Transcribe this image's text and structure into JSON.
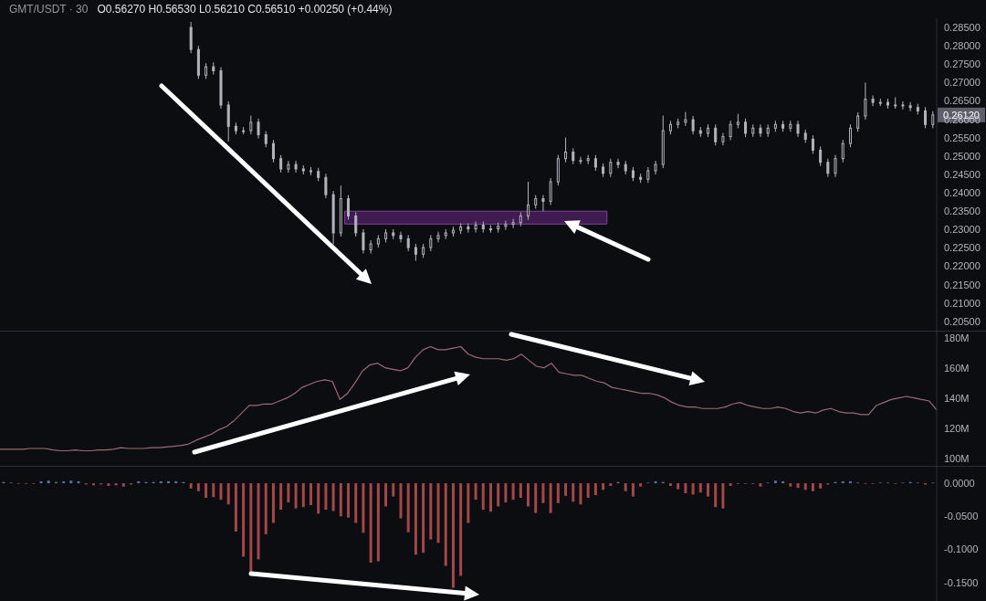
{
  "chart_data": [
    {
      "type": "candlestick",
      "title": "GMT/USDT · 30",
      "subtitle": "O0.56270 H0.56530 L0.56210 C0.56510 +0.00250 (+0.44%)",
      "color": "#b2b5be",
      "tick_labels": "y",
      "categories": [
        null,
        null,
        null,
        null,
        null,
        null,
        null,
        null,
        null,
        null,
        null,
        null,
        null,
        null,
        null,
        null,
        null,
        null,
        null,
        null,
        null,
        null,
        null,
        null,
        null,
        null,
        null,
        null,
        null,
        null,
        null,
        null,
        null,
        null,
        null,
        null,
        null,
        null,
        null,
        null,
        null,
        null,
        null,
        null,
        null,
        null,
        null,
        null,
        null,
        null,
        null,
        null,
        null,
        null,
        null,
        null,
        null,
        null,
        null,
        null,
        null,
        null,
        null,
        null,
        null,
        null,
        null,
        null,
        null,
        null,
        null,
        null,
        null,
        null,
        null,
        null,
        null,
        null,
        null,
        null,
        null,
        null,
        null,
        null,
        null,
        null,
        null,
        null,
        null,
        null,
        null,
        null,
        null,
        null,
        null,
        null,
        null,
        null,
        null,
        null,
        null,
        null,
        null,
        null,
        null,
        null,
        null,
        null,
        null,
        null,
        null,
        null,
        null,
        null,
        null,
        null,
        null,
        null,
        null,
        null,
        null,
        null,
        null,
        null,
        null
      ],
      "ohlc": [
        null,
        null,
        null,
        null,
        null,
        null,
        null,
        null,
        null,
        null,
        null,
        null,
        null,
        null,
        null,
        null,
        null,
        null,
        null,
        null,
        null,
        null,
        null,
        null,
        null,
        [
          0.285,
          0.2865,
          0.278,
          0.279
        ],
        [
          0.279,
          0.28,
          0.271,
          0.272
        ],
        [
          0.272,
          0.2753,
          0.271,
          0.2743
        ],
        [
          0.2743,
          0.2755,
          0.2722,
          0.2732
        ],
        [
          0.2732,
          0.2742,
          0.2629,
          0.2639
        ],
        [
          0.2639,
          0.2649,
          0.254,
          0.2581
        ],
        [
          0.2581,
          0.2591,
          0.2559,
          0.2569
        ],
        [
          0.2569,
          0.2579,
          0.2559,
          0.2569
        ],
        [
          0.2569,
          0.261,
          0.2559,
          0.2592
        ],
        [
          0.2592,
          0.2602,
          0.2548,
          0.2558
        ],
        [
          0.2558,
          0.2568,
          0.2524,
          0.2534
        ],
        [
          0.2534,
          0.2544,
          0.2483,
          0.2493
        ],
        [
          0.2493,
          0.2503,
          0.2455,
          0.2465
        ],
        [
          0.2465,
          0.2487,
          0.2455,
          0.2477
        ],
        [
          0.2477,
          0.2487,
          0.2455,
          0.2465
        ],
        [
          0.2465,
          0.2475,
          0.245,
          0.246
        ],
        [
          0.246,
          0.247,
          0.2448,
          0.2458
        ],
        [
          0.2458,
          0.2468,
          0.2432,
          0.2442
        ],
        [
          0.2442,
          0.2452,
          0.2385,
          0.2395
        ],
        [
          0.2395,
          0.2405,
          0.226,
          0.2291
        ],
        [
          0.2291,
          0.242,
          0.2281,
          0.2384
        ],
        [
          0.2384,
          0.2394,
          0.2327,
          0.2337
        ],
        [
          0.2337,
          0.2347,
          0.2281,
          0.2291
        ],
        [
          0.2291,
          0.2301,
          0.2235,
          0.2245
        ],
        [
          0.2245,
          0.2271,
          0.2235,
          0.2261
        ],
        [
          0.2261,
          0.2285,
          0.2251,
          0.2275
        ],
        [
          0.2275,
          0.2301,
          0.2265,
          0.2291
        ],
        [
          0.2291,
          0.2301,
          0.2274,
          0.2284
        ],
        [
          0.2284,
          0.2294,
          0.2265,
          0.2275
        ],
        [
          0.2275,
          0.2285,
          0.2241,
          0.2251
        ],
        [
          0.2251,
          0.2261,
          0.2215,
          0.2233
        ],
        [
          0.2233,
          0.2261,
          0.2223,
          0.2251
        ],
        [
          0.2251,
          0.2285,
          0.2241,
          0.2275
        ],
        [
          0.2275,
          0.2294,
          0.2265,
          0.2284
        ],
        [
          0.2284,
          0.2301,
          0.2274,
          0.2291
        ],
        [
          0.2291,
          0.2308,
          0.2281,
          0.2298
        ],
        [
          0.2298,
          0.2317,
          0.2288,
          0.2307
        ],
        [
          0.2307,
          0.2317,
          0.2292,
          0.2302
        ],
        [
          0.2302,
          0.2322,
          0.2292,
          0.2312
        ],
        [
          0.2312,
          0.2322,
          0.2292,
          0.2302
        ],
        [
          0.2302,
          0.2312,
          0.2292,
          0.2302
        ],
        [
          0.2302,
          0.2319,
          0.2292,
          0.2309
        ],
        [
          0.2309,
          0.2324,
          0.2299,
          0.2314
        ],
        [
          0.2314,
          0.2329,
          0.2304,
          0.2319
        ],
        [
          0.2319,
          0.2347,
          0.2309,
          0.2337
        ],
        [
          0.2337,
          0.243,
          0.2327,
          0.2367
        ],
        [
          0.2367,
          0.2394,
          0.2357,
          0.2384
        ],
        [
          0.2384,
          0.2394,
          0.235,
          0.2377
        ],
        [
          0.2377,
          0.244,
          0.2367,
          0.243
        ],
        [
          0.243,
          0.2503,
          0.242,
          0.2493
        ],
        [
          0.2493,
          0.255,
          0.2483,
          0.2511
        ],
        [
          0.2511,
          0.2521,
          0.2478,
          0.2488
        ],
        [
          0.2488,
          0.2498,
          0.2478,
          0.2488
        ],
        [
          0.2488,
          0.2503,
          0.2478,
          0.2493
        ],
        [
          0.2493,
          0.2503,
          0.246,
          0.247
        ],
        [
          0.247,
          0.248,
          0.2443,
          0.2453
        ],
        [
          0.2453,
          0.2493,
          0.2443,
          0.2483
        ],
        [
          0.2483,
          0.2493,
          0.2467,
          0.2477
        ],
        [
          0.2477,
          0.2487,
          0.245,
          0.246
        ],
        [
          0.246,
          0.247,
          0.2432,
          0.2442
        ],
        [
          0.2442,
          0.2452,
          0.2427,
          0.2437
        ],
        [
          0.2437,
          0.247,
          0.2427,
          0.246
        ],
        [
          0.246,
          0.2487,
          0.245,
          0.2477
        ],
        [
          0.2477,
          0.261,
          0.2467,
          0.2569
        ],
        [
          0.2569,
          0.2596,
          0.2559,
          0.2586
        ],
        [
          0.2586,
          0.2602,
          0.2576,
          0.2592
        ],
        [
          0.2592,
          0.262,
          0.2582,
          0.2599
        ],
        [
          0.2599,
          0.2609,
          0.2559,
          0.2569
        ],
        [
          0.2569,
          0.2579,
          0.2552,
          0.2562
        ],
        [
          0.2562,
          0.2586,
          0.2552,
          0.2576
        ],
        [
          0.2576,
          0.2586,
          0.2529,
          0.2539
        ],
        [
          0.2539,
          0.2563,
          0.2529,
          0.2553
        ],
        [
          0.2553,
          0.2596,
          0.2543,
          0.2586
        ],
        [
          0.2586,
          0.2615,
          0.2576,
          0.2592
        ],
        [
          0.2592,
          0.2602,
          0.2552,
          0.2562
        ],
        [
          0.2562,
          0.2586,
          0.2552,
          0.2576
        ],
        [
          0.2576,
          0.2586,
          0.2552,
          0.2562
        ],
        [
          0.2562,
          0.2586,
          0.2552,
          0.2576
        ],
        [
          0.2576,
          0.2596,
          0.2566,
          0.2586
        ],
        [
          0.2586,
          0.2596,
          0.2566,
          0.2576
        ],
        [
          0.2576,
          0.2596,
          0.2566,
          0.2586
        ],
        [
          0.2586,
          0.2596,
          0.2552,
          0.2562
        ],
        [
          0.2562,
          0.2572,
          0.2536,
          0.2546
        ],
        [
          0.2546,
          0.2556,
          0.2506,
          0.2516
        ],
        [
          0.2516,
          0.2526,
          0.2473,
          0.2483
        ],
        [
          0.2483,
          0.2493,
          0.2443,
          0.2453
        ],
        [
          0.2453,
          0.2503,
          0.2443,
          0.2493
        ],
        [
          0.2493,
          0.2544,
          0.2483,
          0.2534
        ],
        [
          0.2534,
          0.2586,
          0.2524,
          0.2576
        ],
        [
          0.2576,
          0.2619,
          0.2566,
          0.2609
        ],
        [
          0.2609,
          0.27,
          0.2599,
          0.2655
        ],
        [
          0.2655,
          0.2665,
          0.2636,
          0.2646
        ],
        [
          0.2646,
          0.2656,
          0.2636,
          0.2646
        ],
        [
          0.2646,
          0.2656,
          0.2629,
          0.2639
        ],
        [
          0.2639,
          0.266,
          0.2629,
          0.2639
        ],
        [
          0.2639,
          0.2649,
          0.2627,
          0.2637
        ],
        [
          0.2637,
          0.2647,
          0.2622,
          0.2632
        ],
        [
          0.2632,
          0.2642,
          0.2613,
          0.2623
        ],
        [
          0.2623,
          0.2633,
          0.2576,
          0.2586
        ],
        [
          0.2586,
          0.2622,
          0.2576,
          0.2612
        ]
      ],
      "ylim": [
        0.2025,
        0.2875
      ],
      "yticks": [
        {
          "value": 0.205,
          "label": "0.20500"
        },
        {
          "value": 0.21,
          "label": "0.21000"
        },
        {
          "value": 0.215,
          "label": "0.21500"
        },
        {
          "value": 0.22,
          "label": "0.22000"
        },
        {
          "value": 0.225,
          "label": "0.22500"
        },
        {
          "value": 0.23,
          "label": "0.23000"
        },
        {
          "value": 0.235,
          "label": "0.23500"
        },
        {
          "value": 0.24,
          "label": "0.24000"
        },
        {
          "value": 0.245,
          "label": "0.24500"
        },
        {
          "value": 0.25,
          "label": "0.25000"
        },
        {
          "value": 0.255,
          "label": "0.25500"
        },
        {
          "value": 0.26,
          "label": "0.26000"
        },
        {
          "value": 0.265,
          "label": "0.26500"
        },
        {
          "value": 0.27,
          "label": "0.27000"
        },
        {
          "value": 0.275,
          "label": "0.27500"
        },
        {
          "value": 0.28,
          "label": "0.28000"
        },
        {
          "value": 0.285,
          "label": "0.28500"
        }
      ],
      "bands": [
        {
          "axis": "y",
          "from": 0.2315,
          "to": 0.235,
          "color": "#4a1f5e"
        }
      ],
      "annotations": [
        "0.26120"
      ]
    },
    {
      "type": "line",
      "color": "#9a6b73",
      "tick_labels": "y",
      "categories": [
        null,
        null,
        null,
        null,
        null,
        null,
        null,
        null,
        null,
        null,
        null,
        null,
        null,
        null,
        null,
        null,
        null,
        null,
        null,
        null,
        null,
        null,
        null,
        null,
        null,
        null,
        null,
        null,
        null,
        null,
        null,
        null,
        null,
        null,
        null,
        null,
        null,
        null,
        null,
        null,
        null,
        null,
        null,
        null,
        null,
        null,
        null,
        null,
        null,
        null,
        null,
        null,
        null,
        null,
        null,
        null,
        null,
        null,
        null,
        null,
        null,
        null,
        null,
        null,
        null,
        null,
        null,
        null,
        null,
        null,
        null,
        null,
        null,
        null,
        null,
        null,
        null,
        null,
        null,
        null,
        null,
        null,
        null,
        null,
        null,
        null,
        null,
        null,
        null,
        null,
        null,
        null,
        null,
        null,
        null,
        null,
        null,
        null,
        null,
        null,
        null,
        null,
        null,
        null,
        null,
        null,
        null,
        null,
        null,
        null,
        null,
        null,
        null,
        null,
        null,
        null,
        null,
        null,
        null,
        null,
        null,
        null,
        null,
        null,
        null
      ],
      "values": [
        106,
        106,
        106,
        106,
        106.5,
        106.5,
        106.5,
        105.5,
        105,
        105,
        105.5,
        105,
        105,
        105.5,
        105.5,
        106,
        107,
        106.5,
        106.5,
        106.5,
        107,
        107,
        107.5,
        108,
        108.5,
        109.5,
        112,
        114,
        116,
        119,
        121,
        125,
        130,
        135,
        135,
        136,
        136,
        138,
        140,
        143,
        147,
        149,
        151,
        152,
        151,
        139,
        143,
        150,
        158,
        162,
        163,
        160,
        159,
        158,
        160,
        167,
        172,
        174,
        172,
        172,
        173,
        174,
        169,
        167,
        166,
        166,
        166,
        165,
        166,
        169,
        165,
        161,
        160,
        163,
        157,
        156,
        155,
        155,
        153,
        151,
        150,
        147,
        146,
        145,
        144,
        143,
        143,
        142,
        140,
        137,
        135,
        134,
        134,
        133,
        133,
        133,
        134,
        136,
        137,
        135,
        134,
        133,
        133,
        134,
        133,
        131,
        130,
        131,
        130,
        132,
        133,
        131,
        130,
        130,
        129,
        129,
        135,
        137,
        139,
        140,
        141,
        140,
        139,
        138,
        132
      ],
      "ylim": [
        95,
        184
      ],
      "yticks": [
        {
          "value": 100,
          "label": "100M"
        },
        {
          "value": 120,
          "label": "120M"
        },
        {
          "value": 140,
          "label": "140M"
        },
        {
          "value": 160,
          "label": "160M"
        },
        {
          "value": 180,
          "label": "180M"
        }
      ]
    },
    {
      "type": "bar",
      "tick_labels": "y",
      "categories": [
        null,
        null,
        null,
        null,
        null,
        null,
        null,
        null,
        null,
        null,
        null,
        null,
        null,
        null,
        null,
        null,
        null,
        null,
        null,
        null,
        null,
        null,
        null,
        null,
        null,
        null,
        null,
        null,
        null,
        null,
        null,
        null,
        null,
        null,
        null,
        null,
        null,
        null,
        null,
        null,
        null,
        null,
        null,
        null,
        null,
        null,
        null,
        null,
        null,
        null,
        null,
        null,
        null,
        null,
        null,
        null,
        null,
        null,
        null,
        null,
        null,
        null,
        null,
        null,
        null,
        null,
        null,
        null,
        null,
        null,
        null,
        null,
        null,
        null,
        null,
        null,
        null,
        null,
        null,
        null,
        null,
        null,
        null,
        null,
        null,
        null,
        null,
        null,
        null,
        null,
        null,
        null,
        null,
        null,
        null,
        null,
        null,
        null,
        null,
        null,
        null,
        null,
        null,
        null,
        null,
        null,
        null,
        null,
        null,
        null,
        null,
        null,
        null,
        null,
        null,
        null,
        null,
        null,
        null,
        null,
        null,
        null,
        null,
        null,
        null
      ],
      "values": [
        0.002,
        0.001,
        -0.001,
        -0.001,
        -0.001,
        0.003,
        0.004,
        0.002,
        0.003,
        0.004,
        0.003,
        -0.002,
        -0.003,
        -0.002,
        -0.004,
        -0.003,
        -0.005,
        -0.002,
        0.003,
        0.002,
        0.002,
        0.003,
        0.003,
        0.003,
        0.002,
        -0.008,
        -0.012,
        -0.022,
        -0.021,
        -0.025,
        -0.032,
        -0.073,
        -0.111,
        -0.134,
        -0.115,
        -0.077,
        -0.06,
        -0.04,
        -0.029,
        -0.038,
        -0.036,
        -0.033,
        -0.046,
        -0.04,
        -0.042,
        -0.05,
        -0.052,
        -0.06,
        -0.075,
        -0.12,
        -0.118,
        -0.035,
        -0.02,
        -0.053,
        -0.074,
        -0.108,
        -0.105,
        -0.085,
        -0.09,
        -0.125,
        -0.158,
        -0.14,
        -0.06,
        -0.025,
        -0.04,
        -0.043,
        -0.035,
        -0.029,
        -0.025,
        -0.022,
        -0.035,
        -0.045,
        -0.03,
        -0.045,
        -0.03,
        -0.019,
        -0.028,
        -0.032,
        -0.022,
        -0.018,
        -0.01,
        -0.004,
        0.002,
        -0.012,
        -0.02,
        -0.005,
        0.001,
        0.003,
        0.002,
        -0.004,
        -0.009,
        -0.015,
        -0.017,
        -0.014,
        -0.02,
        -0.036,
        -0.038,
        -0.004,
        -0.001,
        -0.001,
        -0.001,
        -0.005,
        0.001,
        0.004,
        0.003,
        -0.005,
        -0.007,
        -0.01,
        -0.012,
        -0.008,
        -0.002,
        0.002,
        0.003,
        0.003,
        0.001,
        -0.001,
        -0.001,
        0.001,
        0.001,
        -0.001,
        0.001,
        0.002,
        0.001,
        -0.002,
        0.001
      ],
      "colors": [
        "#5b6fa3",
        "#5b6fa3",
        "#a3474b",
        "#a3474b",
        "#a3474b",
        "#5b6fa3",
        "#5b6fa3",
        "#5b6fa3",
        "#5b6fa3",
        "#5b6fa3",
        "#5b6fa3",
        "#a3474b",
        "#a3474b",
        "#a3474b",
        "#a3474b",
        "#a3474b",
        "#a3474b",
        "#a3474b",
        "#5b6fa3",
        "#5b6fa3",
        "#5b6fa3",
        "#5b6fa3",
        "#5b6fa3",
        "#5b6fa3",
        "#5b6fa3",
        "#a3474b",
        "#a3474b",
        "#a3474b",
        "#a3474b",
        "#a3474b",
        "#a3474b",
        "#a3474b",
        "#a3474b",
        "#a3474b",
        "#a3474b",
        "#a3474b",
        "#a3474b",
        "#a3474b",
        "#a3474b",
        "#a3474b",
        "#a3474b",
        "#a3474b",
        "#a3474b",
        "#a3474b",
        "#a3474b",
        "#a3474b",
        "#a3474b",
        "#a3474b",
        "#a3474b",
        "#a3474b",
        "#a3474b",
        "#a3474b",
        "#a3474b",
        "#a3474b",
        "#a3474b",
        "#a3474b",
        "#a3474b",
        "#a3474b",
        "#a3474b",
        "#a3474b",
        "#a3474b",
        "#a3474b",
        "#a3474b",
        "#a3474b",
        "#a3474b",
        "#a3474b",
        "#a3474b",
        "#a3474b",
        "#a3474b",
        "#a3474b",
        "#a3474b",
        "#a3474b",
        "#a3474b",
        "#a3474b",
        "#a3474b",
        "#a3474b",
        "#a3474b",
        "#a3474b",
        "#a3474b",
        "#a3474b",
        "#a3474b",
        "#a3474b",
        "#5b6fa3",
        "#a3474b",
        "#a3474b",
        "#a3474b",
        "#5b6fa3",
        "#5b6fa3",
        "#5b6fa3",
        "#a3474b",
        "#a3474b",
        "#a3474b",
        "#a3474b",
        "#a3474b",
        "#a3474b",
        "#a3474b",
        "#a3474b",
        "#a3474b",
        "#a3474b",
        "#a3474b",
        "#a3474b",
        "#a3474b",
        "#5b6fa3",
        "#5b6fa3",
        "#5b6fa3",
        "#a3474b",
        "#a3474b",
        "#a3474b",
        "#a3474b",
        "#a3474b",
        "#a3474b",
        "#5b6fa3",
        "#5b6fa3",
        "#5b6fa3",
        "#5b6fa3",
        "#a3474b",
        "#a3474b",
        "#5b6fa3",
        "#5b6fa3",
        "#a3474b",
        "#5b6fa3",
        "#5b6fa3",
        "#5b6fa3",
        "#a3474b",
        "#5b6fa3"
      ],
      "ylim": [
        -0.178,
        0.025
      ],
      "yticks": [
        {
          "value": -0.15,
          "label": "-0.1500"
        },
        {
          "value": -0.1,
          "label": "-0.1000"
        },
        {
          "value": -0.05,
          "label": "-0.0500"
        },
        {
          "value": 0,
          "label": "0.0000"
        }
      ]
    }
  ]
}
